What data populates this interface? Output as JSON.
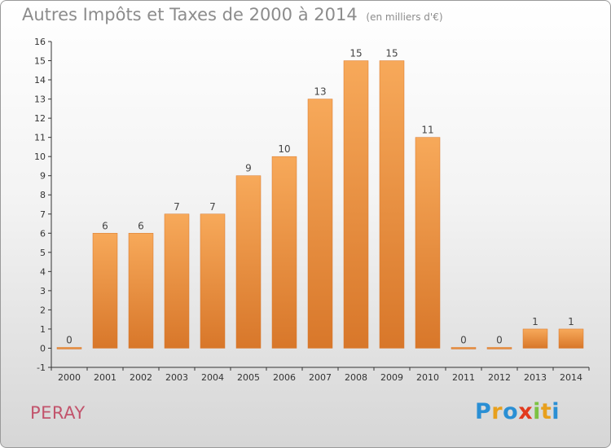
{
  "header": {
    "title": "Autres Impôts et Taxes de 2000 à 2014",
    "subtitle": "(en milliers d'€)"
  },
  "footer": {
    "commune": "PERAY",
    "brand_letters": [
      "P",
      "r",
      "o",
      "x",
      "i",
      "t",
      "i"
    ],
    "brand_colors": [
      "#2a8fd4",
      "#e8a01d",
      "#2a8fd4",
      "#e23a1e",
      "#7cc242",
      "#e8a01d",
      "#2a8fd4"
    ]
  },
  "colors": {
    "bar_light": "#f7a95a",
    "bar_dark": "#d8772a",
    "axis": "#333333",
    "grid": "#cccccc"
  },
  "chart_data": {
    "type": "bar",
    "title": "Autres Impôts et Taxes de 2000 à 2014",
    "subtitle": "(en milliers d'€)",
    "categories": [
      "2000",
      "2001",
      "2002",
      "2003",
      "2004",
      "2005",
      "2006",
      "2007",
      "2008",
      "2009",
      "2010",
      "2011",
      "2012",
      "2013",
      "2014"
    ],
    "values": [
      0,
      6,
      6,
      7,
      7,
      9,
      10,
      13,
      15,
      15,
      11,
      0,
      0,
      1,
      1
    ],
    "data_labels": [
      "0",
      "6",
      "6",
      "7",
      "7",
      "9",
      "10",
      "13",
      "15",
      "15",
      "11",
      "0",
      "0",
      "1",
      "1"
    ],
    "ylim": [
      -1,
      16
    ],
    "yticks": [
      "-1",
      "0",
      "1",
      "2",
      "3",
      "4",
      "5",
      "6",
      "7",
      "8",
      "9",
      "10",
      "11",
      "12",
      "13",
      "14",
      "15",
      "16"
    ],
    "xlabel": "",
    "ylabel": "",
    "grid": false
  }
}
